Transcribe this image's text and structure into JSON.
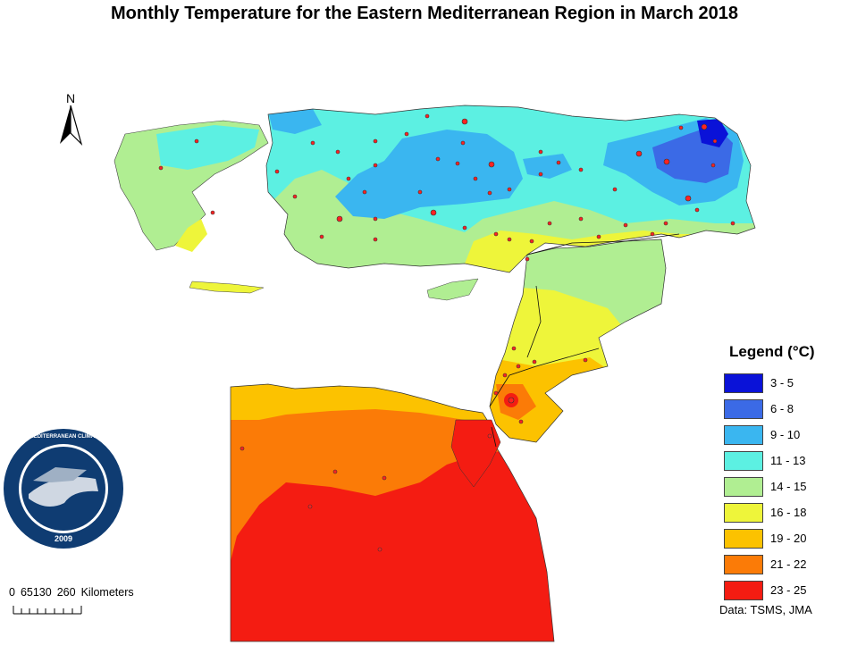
{
  "title": "Monthly  Temperature for the Eastern Mediterranean Region in March 2018",
  "north_arrow": {
    "letter": "N",
    "icon": "north-arrow-icon"
  },
  "legend": {
    "title": "Legend (°C)",
    "items": [
      {
        "label": "3 - 5",
        "color": "#0a12d8"
      },
      {
        "label": "6 - 8",
        "color": "#3b6ae6"
      },
      {
        "label": "9 - 10",
        "color": "#3ab6f0"
      },
      {
        "label": "11 - 13",
        "color": "#5cf0e2"
      },
      {
        "label": "14 - 15",
        "color": "#b0ee92"
      },
      {
        "label": "16 - 18",
        "color": "#eef53a"
      },
      {
        "label": "19 - 20",
        "color": "#fcc200"
      },
      {
        "label": "21 - 22",
        "color": "#fb7b07"
      },
      {
        "label": "23 - 25",
        "color": "#f41c12"
      }
    ]
  },
  "source": "Data:  TSMS, JMA",
  "scale_bar": {
    "labels": [
      "0",
      "65130",
      "260",
      "Kilometers"
    ]
  },
  "logo": {
    "text": "EASTERN MEDITERRANEAN  CLIMATE  CENTRE",
    "year": "2009"
  }
}
